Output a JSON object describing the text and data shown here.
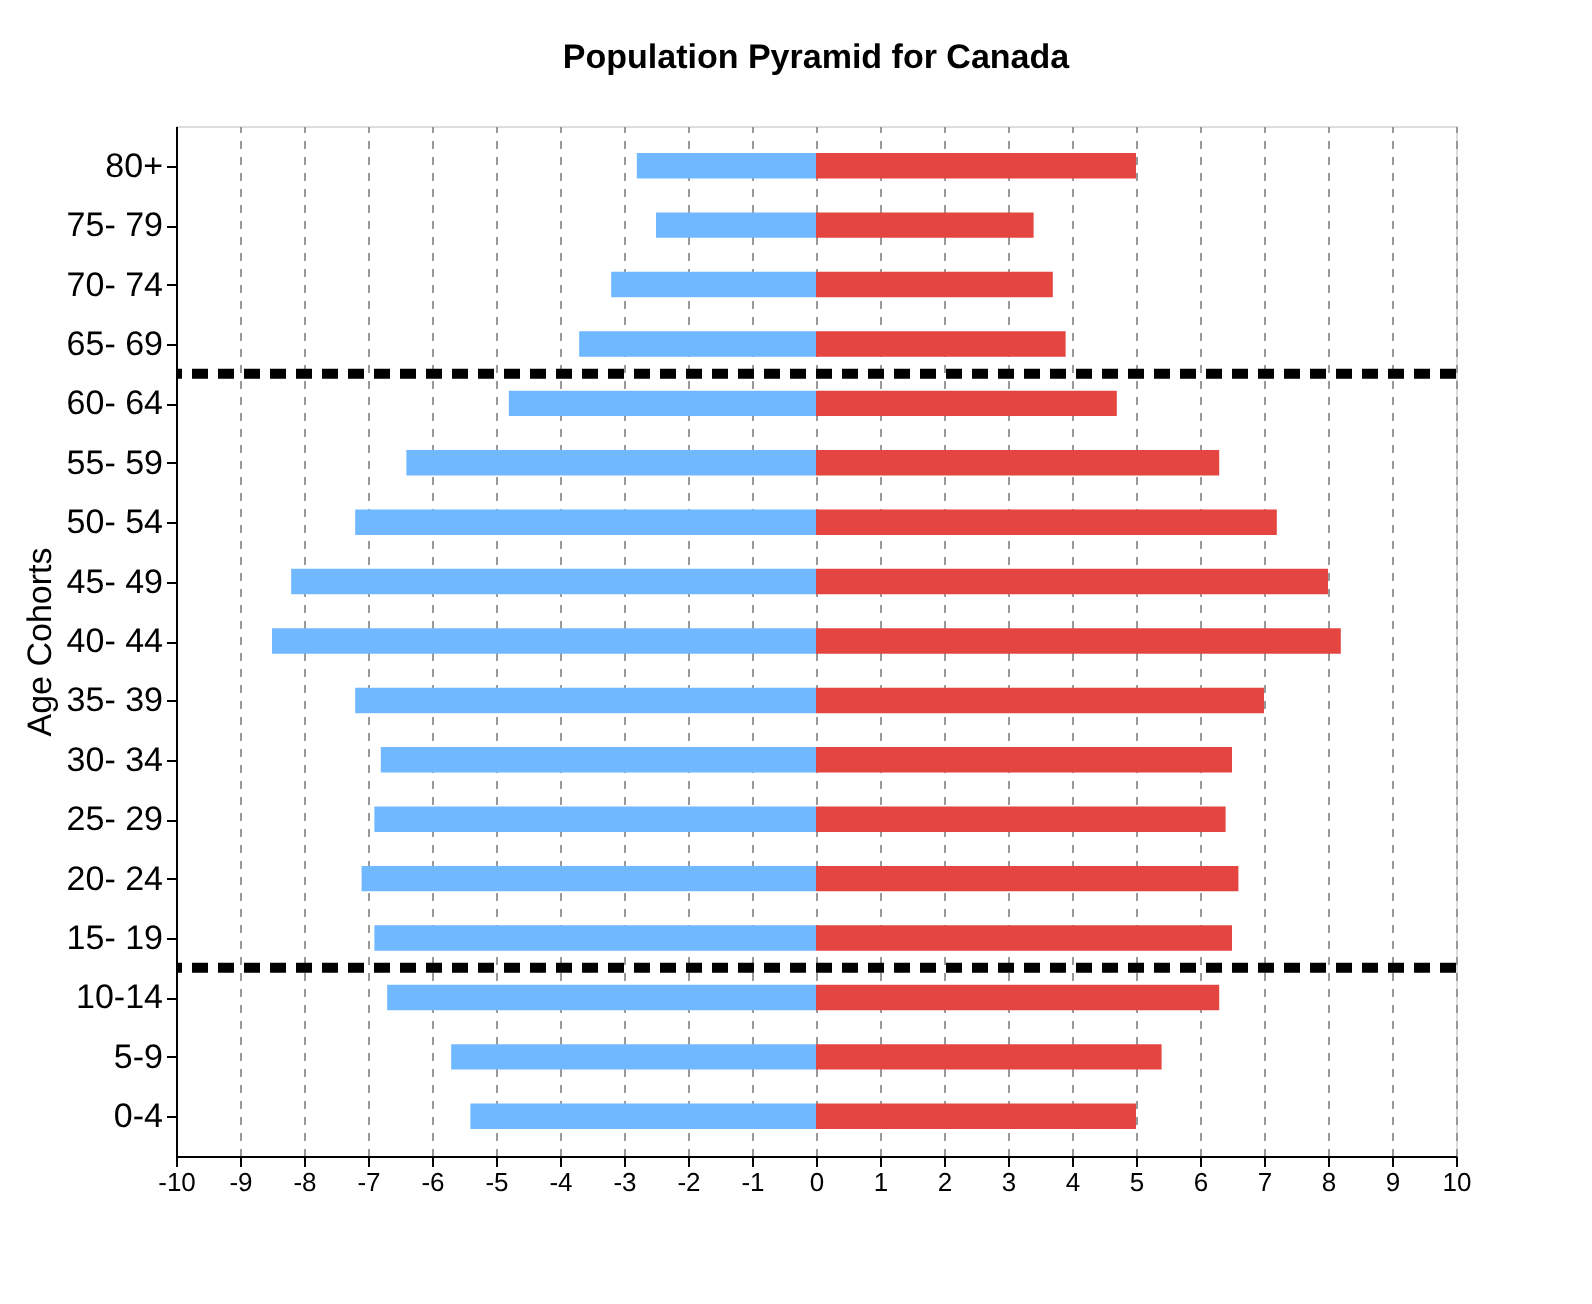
{
  "chart_data": {
    "type": "bar",
    "orientation": "horizontal",
    "title": "Population Pyramid for Canada",
    "ylabel": "Age Cohorts",
    "categories": [
      "80+",
      "75- 79",
      "70- 74",
      "65- 69",
      "60- 64",
      "55- 59",
      "50- 54",
      "45- 49",
      "40- 44",
      "35- 39",
      "30- 34",
      "25- 29",
      "20- 24",
      "15- 19",
      "10-14",
      "5-9",
      "0-4"
    ],
    "series": [
      {
        "color": "#70b8ff",
        "values": [
          -2.8,
          -2.5,
          -3.2,
          -3.7,
          -4.8,
          -6.4,
          -7.2,
          -8.2,
          -8.5,
          -7.2,
          -6.8,
          -6.9,
          -7.1,
          -6.9,
          -6.7,
          -5.7,
          -5.4
        ]
      },
      {
        "color": "#e54540",
        "values": [
          5.0,
          3.4,
          3.7,
          3.9,
          4.7,
          6.3,
          7.2,
          8.0,
          8.2,
          7.0,
          6.5,
          6.4,
          6.6,
          6.5,
          6.3,
          5.4,
          5.0
        ]
      }
    ],
    "xlim": [
      -10,
      10
    ],
    "xticks": [
      -10,
      -9,
      -8,
      -7,
      -6,
      -5,
      -4,
      -3,
      -2,
      -1,
      0,
      1,
      2,
      3,
      4,
      5,
      6,
      7,
      8,
      9,
      10
    ],
    "grid": "x",
    "stacked": true,
    "ref_lines": [
      {
        "axis": "y",
        "value": "65- 69",
        "color": "#000000",
        "line_style": "dashed"
      },
      {
        "axis": "y",
        "value": "15- 19",
        "color": "#000000",
        "line_style": "dashed"
      }
    ]
  }
}
